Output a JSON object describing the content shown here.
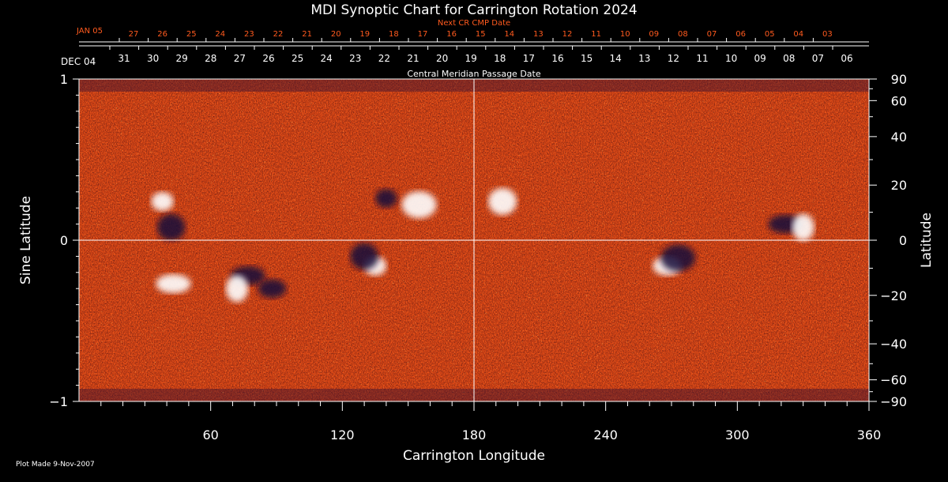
{
  "chart_data": {
    "type": "heatmap",
    "title": "MDI Synoptic Chart for Carrington Rotation 2024",
    "xlabel": "Carrington Longitude",
    "ylabel_left": "Sine Latitude",
    "ylabel_right": "Latitude",
    "xlim": [
      0,
      360
    ],
    "ylim": [
      -1,
      1
    ],
    "x_ticks": [
      60,
      120,
      180,
      240,
      300,
      360
    ],
    "y_ticks_left": [
      {
        "v": 1,
        "label": "1"
      },
      {
        "v": 0,
        "label": "0"
      },
      {
        "v": -1,
        "label": "−1"
      }
    ],
    "y_ticks_right_deg": [
      {
        "v": 90,
        "label": "90"
      },
      {
        "v": 60,
        "label": "60"
      },
      {
        "v": 40,
        "label": "40"
      },
      {
        "v": 20,
        "label": "20"
      },
      {
        "v": 0,
        "label": "0"
      },
      {
        "v": -20,
        "label": "−20"
      },
      {
        "v": -40,
        "label": "−40"
      },
      {
        "v": -60,
        "label": "−60"
      },
      {
        "v": -90,
        "label": "−90"
      }
    ],
    "top_axis_title": "Central Meridian Passage Date",
    "top_axis_start_label": "DEC 04",
    "top_axis_dates": [
      "31",
      "30",
      "29",
      "28",
      "27",
      "26",
      "25",
      "24",
      "23",
      "22",
      "21",
      "20",
      "19",
      "18",
      "17",
      "16",
      "15",
      "14",
      "13",
      "12",
      "11",
      "10",
      "09",
      "08",
      "07",
      "06"
    ],
    "next_cr_title": "Next CR CMP Date",
    "next_cr_start_label": "JAN 05",
    "next_cr_dates": [
      "27",
      "26",
      "25",
      "24",
      "23",
      "22",
      "21",
      "20",
      "19",
      "18",
      "17",
      "16",
      "15",
      "14",
      "13",
      "12",
      "11",
      "10",
      "09",
      "08",
      "07",
      "06",
      "05",
      "04",
      "03"
    ],
    "grid": "center crosshair (longitude 180, sine latitude 0)",
    "colormap": [
      "#000000",
      "#1a1a66",
      "#b3261e",
      "#ff5a1e",
      "#ffb347",
      "#ffffff"
    ],
    "features": [
      {
        "name": "bright-patch",
        "lon": 135,
        "sinlat": -0.16,
        "value": "positive"
      },
      {
        "name": "dark-patch",
        "lon": 130,
        "sinlat": -0.1,
        "value": "negative"
      },
      {
        "name": "dark-patch",
        "lon": 77,
        "sinlat": -0.22,
        "value": "negative"
      },
      {
        "name": "bright-patch",
        "lon": 72,
        "sinlat": -0.3,
        "value": "positive"
      },
      {
        "name": "dark-patch",
        "lon": 88,
        "sinlat": -0.3,
        "value": "negative"
      },
      {
        "name": "bright-patch",
        "lon": 155,
        "sinlat": 0.22,
        "value": "positive"
      },
      {
        "name": "dark-patch",
        "lon": 140,
        "sinlat": 0.26,
        "value": "negative"
      },
      {
        "name": "bright-patch",
        "lon": 193,
        "sinlat": 0.24,
        "value": "positive"
      },
      {
        "name": "dark-patch",
        "lon": 322,
        "sinlat": 0.1,
        "value": "negative"
      },
      {
        "name": "bright-patch",
        "lon": 330,
        "sinlat": 0.08,
        "value": "positive"
      },
      {
        "name": "bright-patch",
        "lon": 268,
        "sinlat": -0.16,
        "value": "positive"
      },
      {
        "name": "dark-patch",
        "lon": 273,
        "sinlat": -0.11,
        "value": "negative"
      },
      {
        "name": "bright-patch",
        "lon": 38,
        "sinlat": 0.24,
        "value": "positive"
      },
      {
        "name": "dark-patch",
        "lon": 42,
        "sinlat": 0.08,
        "value": "negative"
      },
      {
        "name": "bright-patch",
        "lon": 43,
        "sinlat": -0.27,
        "value": "positive"
      }
    ]
  },
  "footer": {
    "plot_made": "Plot Made  9-Nov-2007"
  }
}
